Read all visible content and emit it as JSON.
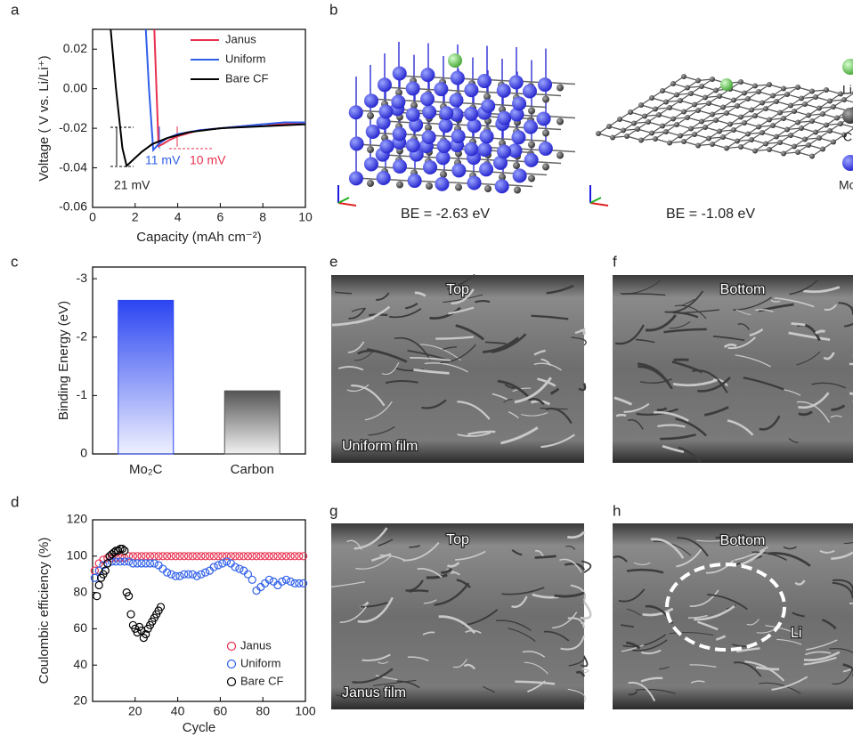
{
  "panel_labels": [
    "a",
    "b",
    "c",
    "d",
    "e",
    "f",
    "g",
    "h"
  ],
  "structures": {
    "left_caption": "BE = -2.63 eV",
    "right_caption": "BE = -1.08 eV",
    "legend": [
      "Li",
      "C",
      "Mo"
    ]
  },
  "micrographs": [
    {
      "labels": [
        "Top",
        "Uniform film"
      ]
    },
    {
      "labels": [
        "Bottom"
      ]
    },
    {
      "labels": [
        "Top",
        "Janus film"
      ]
    },
    {
      "labels": [
        "Bottom",
        "Li"
      ]
    }
  ],
  "chart_data": [
    {
      "type": "line",
      "xlabel": "Capacity (mAh cm⁻²)",
      "ylabel": "Voltage ( V vs. Li/Li⁺)",
      "xlim": [
        0,
        10
      ],
      "xticks": [
        0,
        2,
        4,
        6,
        8,
        10
      ],
      "ylim": [
        -0.06,
        0.03
      ],
      "yticks": [
        -0.06,
        -0.04,
        -0.02,
        {
          "value": 0,
          "label": "0.00"
        },
        0.02
      ],
      "legend": "upper right",
      "annotations": [
        "21 mV",
        "11 mV",
        "10 mV"
      ],
      "series": [
        {
          "name": "Janus",
          "color": "#e8314f",
          "x": [
            2.9,
            3.0,
            3.1,
            3.3,
            3.6,
            4,
            5,
            6,
            7,
            8,
            9,
            10
          ],
          "values": [
            0.03,
            0.0,
            -0.029,
            -0.028,
            -0.026,
            -0.024,
            -0.021,
            -0.02,
            -0.019,
            -0.018,
            -0.018,
            -0.017
          ]
        },
        {
          "name": "Uniform",
          "color": "#2f5fe8",
          "x": [
            2.5,
            2.65,
            2.85,
            3.1,
            3.5,
            4,
            5,
            6,
            7,
            8,
            9,
            10
          ],
          "values": [
            0.03,
            0.0,
            -0.031,
            -0.028,
            -0.025,
            -0.023,
            -0.021,
            -0.02,
            -0.019,
            -0.018,
            -0.017,
            -0.017
          ]
        },
        {
          "name": "Bare CF",
          "color": "#000000",
          "x": [
            0.85,
            1.1,
            1.4,
            1.6,
            1.9,
            2.3,
            2.8,
            3.5,
            4.5,
            6,
            8,
            10
          ],
          "values": [
            0.03,
            0.0,
            -0.03,
            -0.039,
            -0.036,
            -0.032,
            -0.028,
            -0.025,
            -0.022,
            -0.02,
            -0.019,
            -0.018
          ]
        }
      ]
    },
    {
      "type": "bar",
      "ylabel": "Binding Energy (eV)",
      "categories": [
        "Mo₂C",
        "Carbon"
      ],
      "values": [
        -2.63,
        -1.08
      ],
      "colors": [
        "#2b45f2",
        "#555555"
      ],
      "ylim": [
        0,
        -3.2
      ],
      "yticks": [
        -3,
        -2,
        -1,
        0
      ]
    },
    {
      "type": "scatter",
      "xlabel": "Cycle",
      "ylabel": "Coulombic efficiency (%)",
      "xlim": [
        0,
        100
      ],
      "xticks": [
        20,
        40,
        60,
        80,
        100
      ],
      "ylim": [
        20,
        120
      ],
      "yticks": [
        20,
        40,
        60,
        80,
        100,
        120
      ],
      "legend": "lower right",
      "series": [
        {
          "name": "Janus",
          "color": "#e8314f",
          "x": [
            1,
            3,
            5,
            7,
            9,
            11,
            13,
            15,
            17,
            19,
            21,
            23,
            25,
            27,
            29,
            31,
            33,
            35,
            37,
            39,
            41,
            43,
            45,
            47,
            49,
            51,
            53,
            55,
            57,
            59,
            61,
            63,
            65,
            67,
            69,
            71,
            73,
            75,
            77,
            79,
            81,
            83,
            85,
            87,
            89,
            91,
            93,
            95,
            97,
            99
          ],
          "values": [
            92,
            96,
            98,
            99,
            99,
            99,
            99,
            99,
            100,
            100,
            100,
            100,
            100,
            100,
            100,
            100,
            100,
            100,
            100,
            100,
            100,
            100,
            100,
            100,
            100,
            100,
            100,
            100,
            100,
            100,
            100,
            100,
            100,
            100,
            100,
            100,
            100,
            100,
            100,
            100,
            100,
            100,
            100,
            100,
            100,
            100,
            100,
            100,
            100,
            100
          ]
        },
        {
          "name": "Uniform",
          "color": "#2f5fe8",
          "x": [
            1,
            3,
            5,
            7,
            9,
            11,
            13,
            15,
            17,
            19,
            21,
            23,
            25,
            27,
            29,
            31,
            33,
            35,
            37,
            39,
            41,
            43,
            45,
            47,
            49,
            51,
            53,
            55,
            57,
            59,
            61,
            63,
            65,
            67,
            69,
            71,
            73,
            75,
            77,
            79,
            81,
            83,
            85,
            87,
            89,
            91,
            93,
            95,
            97,
            99
          ],
          "values": [
            88,
            92,
            95,
            96,
            97,
            97,
            97,
            97,
            97,
            96,
            96,
            96,
            96,
            96,
            96,
            95,
            93,
            91,
            90,
            89,
            89,
            90,
            90,
            90,
            89,
            90,
            91,
            92,
            94,
            95,
            96,
            97,
            96,
            94,
            93,
            92,
            90,
            87,
            81,
            83,
            85,
            87,
            86,
            84,
            86,
            87,
            86,
            85,
            85,
            85
          ]
        },
        {
          "name": "Bare CF",
          "color": "#000000",
          "x": [
            2,
            3,
            4,
            5,
            6,
            7,
            8,
            9,
            10,
            11,
            12,
            13,
            14,
            15,
            16,
            17,
            18,
            19,
            20,
            21,
            22,
            23,
            24,
            25,
            26,
            27,
            28,
            29,
            30,
            31,
            32
          ],
          "values": [
            78,
            84,
            88,
            90,
            92,
            96,
            100,
            101,
            102,
            103,
            103,
            104,
            104,
            103,
            80,
            78,
            68,
            62,
            60,
            58,
            61,
            59,
            55,
            57,
            60,
            62,
            64,
            66,
            68,
            70,
            72
          ]
        }
      ]
    }
  ]
}
